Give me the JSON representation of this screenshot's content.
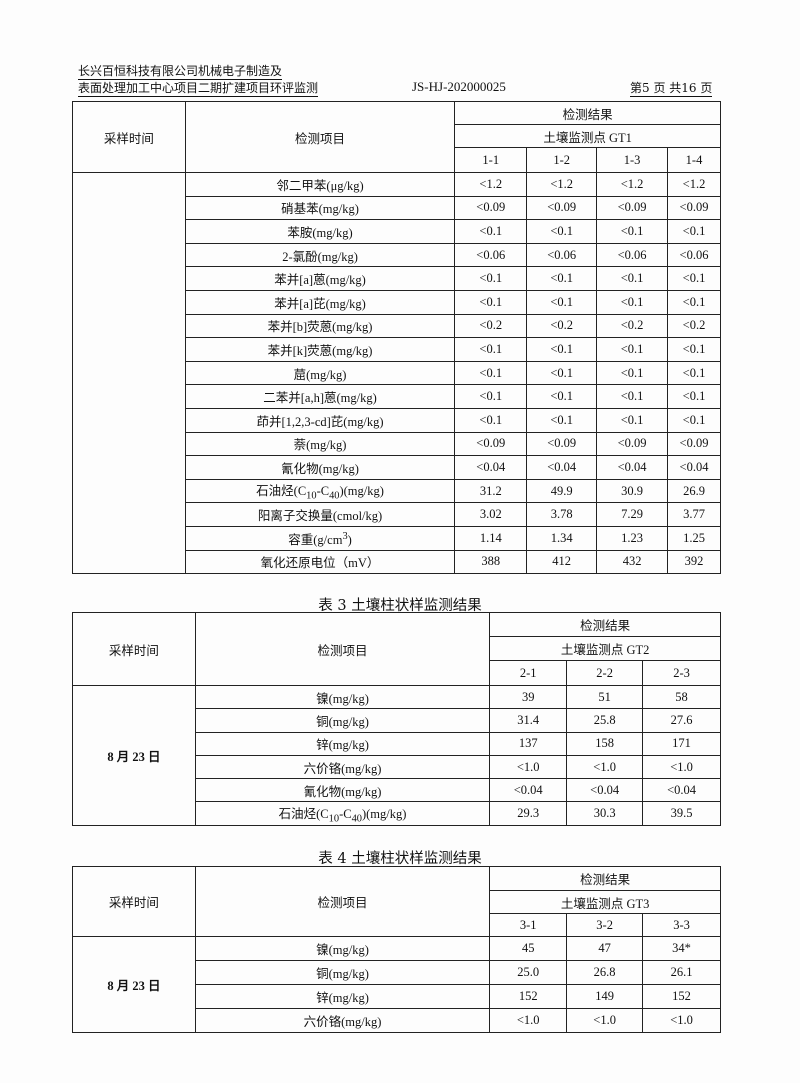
{
  "header": {
    "company_line1": "长兴百恒科技有限公司机械电子制造及",
    "company_line2": "表面处理加工中心项目二期扩建项目环评监测",
    "report_no": "JS-HJ-202000025",
    "page": "第5 页 共16 页"
  },
  "table2": {
    "col_time": "采样时间",
    "col_item": "检测项目",
    "col_result": "检测结果",
    "point": "土壤监测点 GT1",
    "samples": [
      "1-1",
      "1-2",
      "1-3",
      "1-4"
    ],
    "date": "",
    "rows": [
      [
        "邻二甲苯(μg/kg)",
        "<1.2",
        "<1.2",
        "<1.2",
        "<1.2"
      ],
      [
        "硝基苯(mg/kg)",
        "<0.09",
        "<0.09",
        "<0.09",
        "<0.09"
      ],
      [
        "苯胺(mg/kg)",
        "<0.1",
        "<0.1",
        "<0.1",
        "<0.1"
      ],
      [
        "2-氯酚(mg/kg)",
        "<0.06",
        "<0.06",
        "<0.06",
        "<0.06"
      ],
      [
        "苯并[a]蒽(mg/kg)",
        "<0.1",
        "<0.1",
        "<0.1",
        "<0.1"
      ],
      [
        "苯并[a]芘(mg/kg)",
        "<0.1",
        "<0.1",
        "<0.1",
        "<0.1"
      ],
      [
        "苯并[b]荧蒽(mg/kg)",
        "<0.2",
        "<0.2",
        "<0.2",
        "<0.2"
      ],
      [
        "苯并[k]荧蒽(mg/kg)",
        "<0.1",
        "<0.1",
        "<0.1",
        "<0.1"
      ],
      [
        "䓛(mg/kg)",
        "<0.1",
        "<0.1",
        "<0.1",
        "<0.1"
      ],
      [
        "二苯并[a,h]蒽(mg/kg)",
        "<0.1",
        "<0.1",
        "<0.1",
        "<0.1"
      ],
      [
        "茚并[1,2,3-cd]芘(mg/kg)",
        "<0.1",
        "<0.1",
        "<0.1",
        "<0.1"
      ],
      [
        "萘(mg/kg)",
        "<0.09",
        "<0.09",
        "<0.09",
        "<0.09"
      ],
      [
        "氰化物(mg/kg)",
        "<0.04",
        "<0.04",
        "<0.04",
        "<0.04"
      ],
      [
        "石油烃(C10-C40)(mg/kg)",
        "31.2",
        "49.9",
        "30.9",
        "26.9"
      ],
      [
        "阳离子交换量(cmol/kg)",
        "3.02",
        "3.78",
        "7.29",
        "3.77"
      ],
      [
        "容重(g/cm3)",
        "1.14",
        "1.34",
        "1.23",
        "1.25"
      ],
      [
        "氧化还原电位（mV）",
        "388",
        "412",
        "432",
        "392"
      ]
    ]
  },
  "table3": {
    "title": "表 3  土壤柱状样监测结果",
    "col_time": "采样时间",
    "col_item": "检测项目",
    "col_result": "检测结果",
    "point": "土壤监测点 GT2",
    "samples": [
      "2-1",
      "2-2",
      "2-3"
    ],
    "date": "8 月 23 日",
    "rows": [
      [
        "镍(mg/kg)",
        "39",
        "51",
        "58"
      ],
      [
        "铜(mg/kg)",
        "31.4",
        "25.8",
        "27.6"
      ],
      [
        "锌(mg/kg)",
        "137",
        "158",
        "171"
      ],
      [
        "六价铬(mg/kg)",
        "<1.0",
        "<1.0",
        "<1.0"
      ],
      [
        "氰化物(mg/kg)",
        "<0.04",
        "<0.04",
        "<0.04"
      ],
      [
        "石油烃(C10-C40)(mg/kg)",
        "29.3",
        "30.3",
        "39.5"
      ]
    ]
  },
  "table4": {
    "title": "表 4  土壤柱状样监测结果",
    "col_time": "采样时间",
    "col_item": "检测项目",
    "col_result": "检测结果",
    "point": "土壤监测点 GT3",
    "samples": [
      "3-1",
      "3-2",
      "3-3"
    ],
    "date": "8 月 23 日",
    "rows": [
      [
        "镍(mg/kg)",
        "45",
        "47",
        "34*"
      ],
      [
        "铜(mg/kg)",
        "25.0",
        "26.8",
        "26.1"
      ],
      [
        "锌(mg/kg)",
        "152",
        "149",
        "152"
      ],
      [
        "六价铬(mg/kg)",
        "<1.0",
        "<1.0",
        "<1.0"
      ]
    ]
  }
}
